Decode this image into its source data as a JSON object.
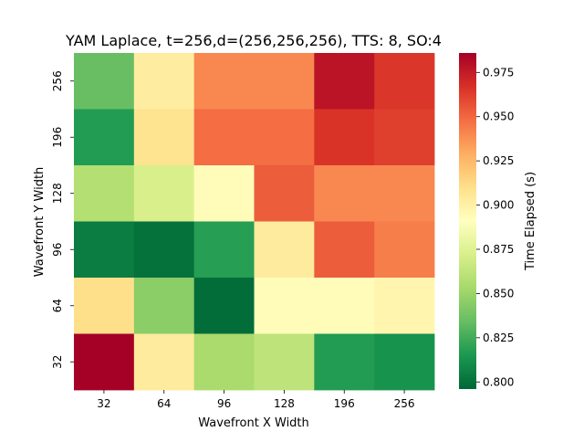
{
  "chart_data": {
    "type": "heatmap",
    "title": "YAM Laplace, t=256,d=(256,256,256), TTS: 8, SO:4",
    "xlabel": "Wavefront X Width",
    "ylabel": "Wavefront Y Width",
    "x_categories": [
      "32",
      "64",
      "96",
      "128",
      "196",
      "256"
    ],
    "y_categories": [
      "256",
      "196",
      "128",
      "96",
      "64",
      "32"
    ],
    "values": [
      [
        0.835,
        0.902,
        0.94,
        0.94,
        0.978,
        0.965
      ],
      [
        0.817,
        0.908,
        0.948,
        0.948,
        0.966,
        0.962
      ],
      [
        0.858,
        0.872,
        0.893,
        0.953,
        0.94,
        0.94
      ],
      [
        0.804,
        0.8,
        0.818,
        0.903,
        0.953,
        0.943
      ],
      [
        0.91,
        0.845,
        0.798,
        0.893,
        0.893,
        0.897
      ],
      [
        0.986,
        0.903,
        0.855,
        0.862,
        0.817,
        0.813
      ]
    ],
    "colorbar": {
      "label": "Time Elapsed (s)",
      "ticks": [
        "0.800",
        "0.825",
        "0.850",
        "0.875",
        "0.900",
        "0.925",
        "0.950",
        "0.975"
      ],
      "vmin": 0.796,
      "vmax": 0.986,
      "colormap": "RdYlGn_r"
    }
  }
}
